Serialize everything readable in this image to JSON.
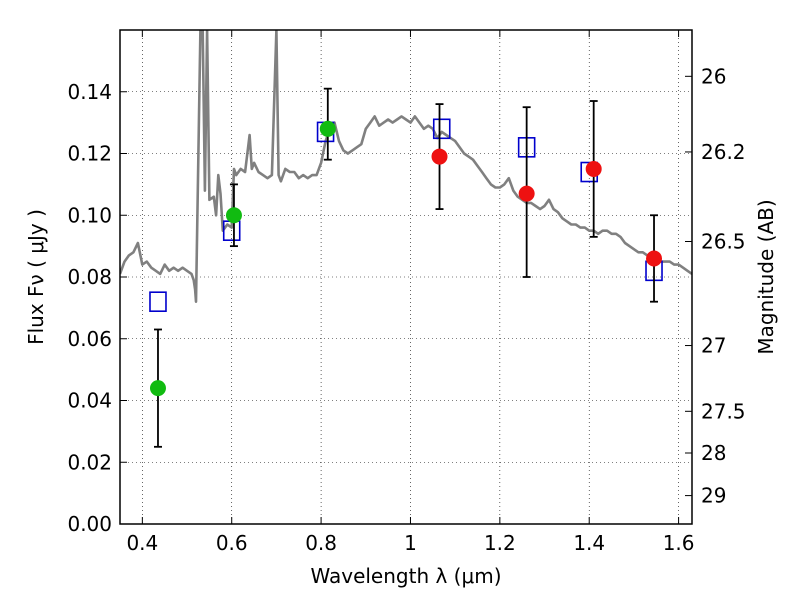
{
  "chart_data": {
    "type": "scatter",
    "title": "",
    "xlabel": "Wavelength  λ (μm)",
    "ylabel": "Flux  Fν ( μJy )",
    "y2label": "Magnitude (AB)",
    "xlim": [
      0.35,
      1.63
    ],
    "ylim": [
      0.0,
      0.16
    ],
    "grid": true,
    "x_ticks": [
      0.4,
      0.6,
      0.8,
      1.0,
      1.2,
      1.4,
      1.6
    ],
    "x_tick_labels": [
      "0.4",
      "0.6",
      "0.8",
      "1",
      "1.2",
      "1.4",
      "1.6"
    ],
    "y_ticks": [
      0.0,
      0.02,
      0.04,
      0.06,
      0.08,
      0.1,
      0.12,
      0.14
    ],
    "y_tick_labels": [
      "0.00",
      "0.02",
      "0.04",
      "0.06",
      "0.08",
      "0.10",
      "0.12",
      "0.14"
    ],
    "y2_ticks": [
      {
        "label": "26",
        "flux": 0.145
      },
      {
        "label": "26.2",
        "flux": 0.1205
      },
      {
        "label": "26.5",
        "flux": 0.0915
      },
      {
        "label": "27",
        "flux": 0.0578
      },
      {
        "label": "27.5",
        "flux": 0.0365
      },
      {
        "label": "28",
        "flux": 0.023
      },
      {
        "label": "29",
        "flux": 0.0092
      }
    ],
    "colors": {
      "model": "#808080",
      "green": "#11bb11",
      "red": "#ee1111",
      "square": "#0000cc",
      "errorbar": "#000000"
    },
    "series": [
      {
        "name": "model spectrum",
        "style": "line",
        "x": [
          0.35,
          0.36,
          0.37,
          0.38,
          0.39,
          0.4,
          0.41,
          0.42,
          0.43,
          0.44,
          0.45,
          0.46,
          0.47,
          0.48,
          0.49,
          0.5,
          0.51,
          0.515,
          0.518,
          0.52,
          0.53,
          0.535,
          0.54,
          0.545,
          0.55,
          0.56,
          0.565,
          0.57,
          0.575,
          0.58,
          0.59,
          0.6,
          0.605,
          0.61,
          0.62,
          0.63,
          0.64,
          0.645,
          0.65,
          0.66,
          0.67,
          0.68,
          0.69,
          0.7,
          0.705,
          0.71,
          0.72,
          0.73,
          0.74,
          0.75,
          0.76,
          0.77,
          0.78,
          0.79,
          0.8,
          0.81,
          0.82,
          0.83,
          0.84,
          0.85,
          0.86,
          0.87,
          0.88,
          0.89,
          0.9,
          0.91,
          0.92,
          0.93,
          0.94,
          0.95,
          0.96,
          0.97,
          0.98,
          0.99,
          1.0,
          1.01,
          1.02,
          1.03,
          1.04,
          1.05,
          1.06,
          1.07,
          1.08,
          1.09,
          1.1,
          1.11,
          1.12,
          1.13,
          1.14,
          1.15,
          1.16,
          1.17,
          1.18,
          1.19,
          1.2,
          1.21,
          1.22,
          1.23,
          1.24,
          1.25,
          1.26,
          1.27,
          1.28,
          1.29,
          1.3,
          1.31,
          1.32,
          1.33,
          1.34,
          1.35,
          1.36,
          1.37,
          1.38,
          1.39,
          1.4,
          1.41,
          1.42,
          1.43,
          1.44,
          1.45,
          1.46,
          1.47,
          1.48,
          1.49,
          1.5,
          1.51,
          1.52,
          1.53,
          1.54,
          1.55,
          1.56,
          1.57,
          1.58,
          1.59,
          1.6,
          1.61,
          1.62,
          1.63
        ],
        "y": [
          0.081,
          0.085,
          0.087,
          0.088,
          0.091,
          0.084,
          0.085,
          0.083,
          0.082,
          0.081,
          0.084,
          0.082,
          0.083,
          0.082,
          0.083,
          0.082,
          0.081,
          0.079,
          0.076,
          0.072,
          0.16,
          0.16,
          0.108,
          0.16,
          0.105,
          0.106,
          0.1,
          0.113,
          0.107,
          0.095,
          0.097,
          0.096,
          0.115,
          0.113,
          0.115,
          0.114,
          0.126,
          0.115,
          0.117,
          0.114,
          0.113,
          0.112,
          0.113,
          0.16,
          0.113,
          0.111,
          0.115,
          0.114,
          0.114,
          0.112,
          0.113,
          0.112,
          0.113,
          0.113,
          0.117,
          0.124,
          0.128,
          0.13,
          0.124,
          0.121,
          0.12,
          0.121,
          0.122,
          0.123,
          0.128,
          0.13,
          0.132,
          0.129,
          0.13,
          0.131,
          0.13,
          0.131,
          0.132,
          0.131,
          0.13,
          0.132,
          0.13,
          0.128,
          0.129,
          0.128,
          0.125,
          0.127,
          0.126,
          0.125,
          0.124,
          0.122,
          0.12,
          0.119,
          0.118,
          0.116,
          0.114,
          0.112,
          0.11,
          0.109,
          0.109,
          0.11,
          0.112,
          0.108,
          0.106,
          0.105,
          0.104,
          0.104,
          0.103,
          0.102,
          0.103,
          0.105,
          0.102,
          0.101,
          0.099,
          0.098,
          0.097,
          0.097,
          0.096,
          0.096,
          0.095,
          0.095,
          0.094,
          0.095,
          0.095,
          0.094,
          0.094,
          0.093,
          0.091,
          0.09,
          0.089,
          0.088,
          0.088,
          0.087,
          0.087,
          0.086,
          0.085,
          0.085,
          0.085,
          0.084,
          0.084,
          0.083,
          0.082,
          0.081
        ]
      },
      {
        "name": "observed flux (green)",
        "style": "circle",
        "color_key": "green",
        "x": [
          0.435,
          0.605,
          0.815
        ],
        "y": [
          0.044,
          0.1,
          0.128
        ],
        "yerr_low": [
          0.025,
          0.09,
          0.118
        ],
        "yerr_high": [
          0.063,
          0.11,
          0.141
        ]
      },
      {
        "name": "observed flux (red)",
        "style": "circle",
        "color_key": "red",
        "x": [
          1.065,
          1.26,
          1.41,
          1.545
        ],
        "y": [
          0.119,
          0.107,
          0.115,
          0.086
        ],
        "yerr_low": [
          0.102,
          0.08,
          0.093,
          0.072
        ],
        "yerr_high": [
          0.136,
          0.135,
          0.137,
          0.1
        ]
      },
      {
        "name": "model photometry",
        "style": "square",
        "color_key": "square",
        "x": [
          0.435,
          0.6,
          0.81,
          1.07,
          1.26,
          1.4,
          1.545
        ],
        "y": [
          0.072,
          0.095,
          0.127,
          0.128,
          0.122,
          0.114,
          0.082
        ]
      }
    ]
  }
}
